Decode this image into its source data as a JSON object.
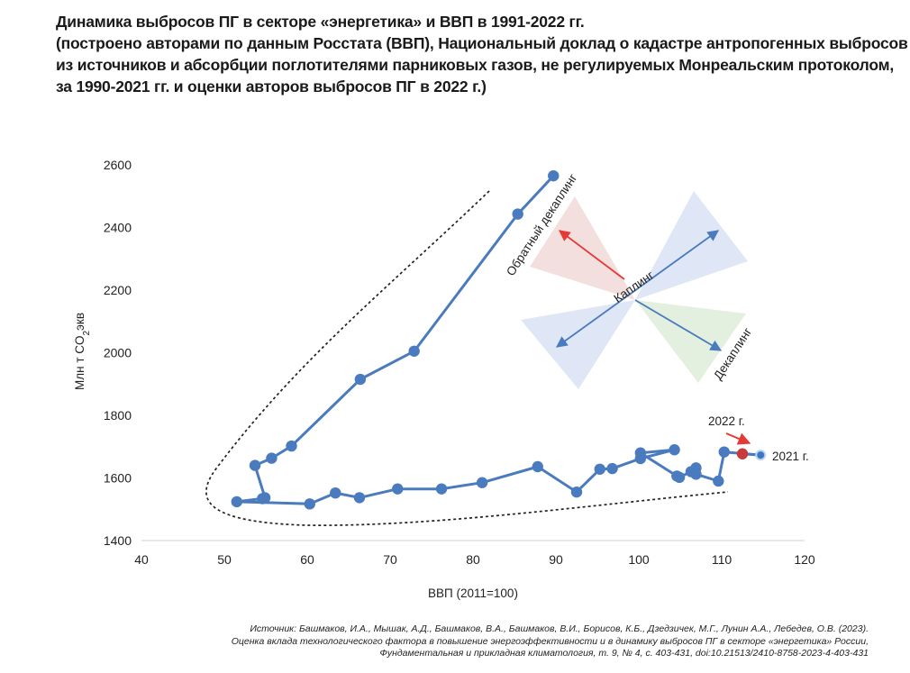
{
  "title": {
    "line1": "Динамика выбросов ПГ в секторе «энергетика» и ВВП в 1991-2022 гг.",
    "line2": "(построено авторами по данным Росстата (ВВП), Национальный доклад о кадастре антропогенных выбросов",
    "line3": "из источников и абсорбции поглотителями парниковых газов, не регулируемых Монреальским протоколом,",
    "line4": "за 1990-2021 гг. и оценки авторов выбросов ПГ в 2022 г.)"
  },
  "source": {
    "line1": "Источник: Башмаков, И.А., Мышак, А.Д., Башмаков, В.А., Башмаков, В.И., Борисов, К.Б., Дзедзичек, М.Г., Лунин А.А., Лебедев, О.В. (2023).",
    "line2": "Оценка вклада технологического фактора в повышение энергоэффективности и в динамику выбросов ПГ в секторе «энергетика» России,",
    "line3": "Фундаментальная и прикладная климатология, т. 9, № 4, с. 403-431, doi:10.21513/2410-8758-2023-4-403-431"
  },
  "chart_data": {
    "type": "scatter",
    "title": "",
    "xlabel": "ВВП (2011=100)",
    "ylabel_main": "Млн т CO",
    "ylabel_sub": "2",
    "ylabel_tail": "экв",
    "xlim": [
      40,
      120
    ],
    "ylim": [
      1400,
      2600
    ],
    "xticks": [
      40,
      50,
      60,
      70,
      80,
      90,
      100,
      110,
      120
    ],
    "yticks": [
      1400,
      1600,
      1800,
      2000,
      2200,
      2400,
      2600
    ],
    "grid": false,
    "colors": {
      "series": "#4a7bbf",
      "highlight_2022": "#c63b3b",
      "label_2022": "#c63b3b",
      "label_2021": "#5b8dc9",
      "coupling_fill": "#d9e2f3",
      "reverse_decoupling_fill": "#f3dcdc",
      "decoupling_fill": "#e1eedb",
      "reverse_decoupling_arrow": "#e53935",
      "envelope": "#222222"
    },
    "series": [
      {
        "x": [
          89.7,
          85.4,
          72.9,
          66.4,
          58.1,
          55.7,
          53.7,
          54.9,
          54.6,
          51.5,
          60.3,
          63.4,
          66.3,
          70.9,
          76.2,
          81.1,
          87.8,
          92.5,
          95.3,
          96.8,
          100.2,
          104.3,
          100.2,
          104.6,
          104.9,
          106.3,
          106.9,
          106.9,
          109.6,
          110.3,
          114.7
        ],
        "y": [
          2565,
          2443,
          2005,
          1915,
          1702,
          1663,
          1640,
          1537,
          1534,
          1524,
          1517,
          1552,
          1537,
          1565,
          1565,
          1585,
          1636,
          1555,
          1628,
          1630,
          1662,
          1690,
          1680,
          1606,
          1602,
          1620,
          1632,
          1612,
          1590,
          1683,
          1673
        ]
      }
    ],
    "highlight_2022": {
      "x": 112.5,
      "y": 1677
    },
    "labels": {
      "year_2022": "2022 г.",
      "year_2021": "2021 г.",
      "reverse_decoupling": "Обратный декаплинг",
      "coupling": "Каплинг",
      "decoupling": "Декаплинг"
    }
  }
}
